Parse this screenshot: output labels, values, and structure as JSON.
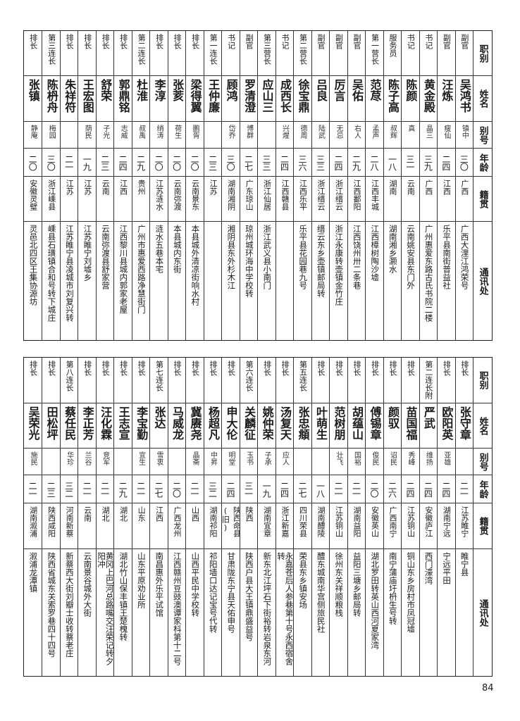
{
  "headers": [
    "职别",
    "姓名",
    "别号",
    "年龄",
    "籍贯",
    "通讯处"
  ],
  "sections": [
    {
      "rows": [
        {
          "rank": "副官",
          "name": "吴鸿书",
          "alias": "镇中",
          "age": "三〇",
          "native": "广西",
          "address": "广西大浬江鸿荣号"
        },
        {
          "rank": "副官",
          "name": "汪炼",
          "alias": "瘦仙",
          "age": "二四",
          "native": "江西",
          "address": "乐平县南街普益社"
        },
        {
          "rank": "书记",
          "name": "黄金殿",
          "alias": "晶三",
          "age": "三九",
          "native": "广西",
          "address": "广州惠爱东路古氏书院二楼"
        },
        {
          "rank": "书记",
          "name": "陈颜",
          "alias": "真",
          "age": "三一",
          "native": "云南",
          "address": "云南姚安县东门外"
        },
        {
          "rank": "服务员",
          "name": "陈子高",
          "alias": "叔辉",
          "age": "一八",
          "native": "湖南",
          "address": "湖南湘乡灏水"
        },
        {
          "rank": "第一营长",
          "name": "范荩",
          "alias": "孟声",
          "age": "二八",
          "native": "江西丰城",
          "address": "江西樟树陶沙墟"
        },
        {
          "rank": "副官",
          "name": "吴佑",
          "alias": "右人",
          "age": "二九",
          "native": "江西鄱阳",
          "address": "江西饶州卅二条巷"
        },
        {
          "rank": "副官",
          "name": "厉言",
          "alias": "无忌",
          "age": "二四",
          "native": "浙江缙云",
          "address": "浙江永康转壶镇金竹庄"
        },
        {
          "rank": "副官",
          "name": "吕良",
          "alias": "陆武",
          "age": "三三",
          "native": "浙江缙云",
          "address": "缙云东乡壶镇邮局转"
        },
        {
          "rank": "第二营长",
          "name": "徐宝鼎",
          "alias": "德周",
          "age": "三六",
          "native": "江西乐平",
          "address": "乐平县花园巷九号"
        },
        {
          "rank": "书记",
          "name": "成西长",
          "alias": "兴煋",
          "age": "二四",
          "native": "江西赣县",
          "address": ""
        },
        {
          "rank": "第三营长",
          "name": "应山三",
          "alias": "",
          "age": "三三",
          "native": "浙江仙居",
          "address": "浙江武义县小南门"
        },
        {
          "rank": "副官",
          "name": "罗清澄",
          "alias": "博群",
          "age": "二七",
          "native": "广东琼山",
          "address": "琼州城环海中学校转"
        },
        {
          "rank": "书记",
          "name": "顾鸿",
          "alias": "岱乔",
          "age": "三〇",
          "native": "湖南湘阴",
          "address": "湘阴县东外杉木江"
        },
        {
          "rank": "第一连长",
          "name": "王仲廉",
          "alias": "",
          "age": "二三",
          "native": "江苏",
          "address": ""
        },
        {
          "rank": "排长",
          "name": "梁得翼",
          "alias": "鹏胥",
          "age": "二〇",
          "native": "云南景东",
          "address": "本县城外清凉街响水村"
        },
        {
          "rank": "排长",
          "name": "张荄",
          "alias": "荷生",
          "age": "二〇",
          "native": "云南弥渡",
          "address": "本县城内东街"
        },
        {
          "rank": "排长",
          "name": "李淳",
          "alias": "绡涛",
          "age": "二〇",
          "native": "江苏涟水",
          "address": "涟水五巷本宅"
        },
        {
          "rank": "第二连长",
          "name": "杜淮",
          "alias": "叔禹",
          "age": "二九",
          "native": "贵州",
          "address": "广州市惠爱西路净慧街门"
        },
        {
          "rank": "排长",
          "name": "郭鼎铭",
          "alias": "志威",
          "age": "二四",
          "native": "江西",
          "address": "江西黎川县城内郭家老屋"
        },
        {
          "rank": "排长",
          "name": "舒荣",
          "alias": "子光",
          "age": "二三",
          "native": "云南",
          "address": "云南弥渡县舒家营"
        },
        {
          "rank": "排长",
          "name": "王宏图",
          "alias": "荫民",
          "age": "一九",
          "native": "江苏",
          "address": "江苏睢宁刘墟乡"
        },
        {
          "rank": "排长",
          "name": "朱祥符",
          "alias": "",
          "age": "二一",
          "native": "江苏",
          "address": "江苏睢宁县凌城市刘复兴转"
        },
        {
          "rank": "第三连长",
          "name": "陈枬舟",
          "alias": "梅园",
          "age": "三〇",
          "native": "浙江嵊县",
          "address": "嵊县石璜镇合和号转下城庄"
        },
        {
          "rank": "排长",
          "name": "张镇",
          "alias": "静庵",
          "age": "二〇",
          "native": "安徽灵璧",
          "address": "灵邑北四区王集协源坊"
        }
      ]
    },
    {
      "rows": [
        {
          "rank": "排长",
          "name": "张守章",
          "alias": "",
          "age": "二一",
          "native": "江苏睢宁",
          "address": "睢宁县"
        },
        {
          "rank": "排长",
          "name": "欧阳英",
          "alias": "亚雄",
          "age": "二四",
          "native": "湖南宁远",
          "address": "宁远平田"
        },
        {
          "rank": "第二连长附",
          "name": "严武",
          "alias": "维扬",
          "age": "二四",
          "native": "安徽庐江",
          "address": "西门濠湾"
        },
        {
          "rank": "排长",
          "name": "苗国福",
          "alias": "秀峰",
          "age": "二四",
          "native": "江苏铜山",
          "address": "铜山东乡房村市凤冠墟"
        },
        {
          "rank": "排长",
          "name": "颜驭",
          "alias": "诏民",
          "age": "二六",
          "native": "广西南宁",
          "address": "南宁蒲庙圩枬生号转"
        },
        {
          "rank": "排长",
          "name": "傅锡章",
          "alias": "俊民",
          "age": "二〇",
          "native": "安徽英山",
          "address": "湖北罗田转英山西河夏家湾"
        },
        {
          "rank": "排长",
          "name": "胡蕴山",
          "alias": "国裕",
          "age": "二一",
          "native": "湖南益阳",
          "address": "益阳三塘乡邮局转"
        },
        {
          "rank": "排长",
          "name": "范树朋",
          "alias": "壮飞",
          "age": "二一",
          "native": "江苏铜山",
          "address": "徐州东关祥顺粮栈"
        },
        {
          "rank": "排长",
          "name": "叶萌生",
          "alias": "",
          "age": "一八",
          "native": "湖南醴陵",
          "address": "醴东城南华宫侧旅民社"
        },
        {
          "rank": "第五连长",
          "name": "张忠頫",
          "alias": "",
          "age": "二七",
          "native": "四川荣县",
          "address": "荣县东乡镇安场"
        },
        {
          "rank": "排长",
          "name": "汤复天",
          "alias": "应人",
          "age": "二四",
          "native": "浙江新嘉",
          "address": "永嘉苍后人参巷第十号永西宿舍转"
        },
        {
          "rank": "排长",
          "name": "姚仲荣",
          "alias": "子承",
          "age": "一九",
          "native": "湖南宜章",
          "address": "新东北江坪石下街裕转岩泉东河"
        },
        {
          "rank": "第六连长",
          "name": "关麟征",
          "alias": "玉书",
          "age": "三一",
          "native": "陕西",
          "address": "陕西户县大王镇鼎盛益号"
        },
        {
          "rank": "排长",
          "name": "申大伦",
          "alias": "明堂",
          "age": "二四",
          "native": "陕西命县(旧)",
          "address": "甘肃陇东宁县天佑申号"
        },
        {
          "rank": "排长",
          "name": "杨超凡",
          "alias": "中昇",
          "age": "三二",
          "native": "湖南祁阳",
          "address": "祁阳墙口达记宝号代转"
        },
        {
          "rank": "排长",
          "name": "冀赓尧",
          "alias": "晶斋",
          "age": "二一",
          "native": "山西",
          "address": "山西平民中学校转"
        },
        {
          "rank": "排长",
          "name": "马威龙",
          "alias": "",
          "age": "二〇",
          "native": "广西龙州",
          "address": "江西赣州豆豉澳谭家枓第十二号"
        },
        {
          "rank": "第七连长",
          "name": "张达",
          "alias": "雪衷",
          "age": "二七",
          "native": "江西",
          "address": "南昌惠外乐平试馆"
        },
        {
          "rank": "排长",
          "name": "李宝勤",
          "alias": "宜生",
          "age": "二一",
          "native": "山东",
          "address": "山东平原劝业所"
        },
        {
          "rank": "排长",
          "name": "王志宣",
          "alias": "",
          "age": "二九",
          "native": "湖北",
          "address": "湖北竹山保丰镇王楚槐转"
        },
        {
          "rank": "排长",
          "name": "汪化霖",
          "alias": "竞军",
          "age": "二一",
          "native": "湖北",
          "address": "黄冈上巴河总路嘴交汪荣记转夕阳冲"
        },
        {
          "rank": "排长",
          "name": "李正芳",
          "alias": "兰谷",
          "age": "二一",
          "native": "云南",
          "address": "云南景谷城外大街"
        },
        {
          "rank": "第八连长",
          "name": "蔡任民",
          "alias": "华珍",
          "age": "三二",
          "native": "河南新蔡",
          "address": "新蔡西大街刘瓣士收转蔡老庄"
        },
        {
          "rank": "排长",
          "name": "田松坪",
          "alias": "",
          "age": "二三",
          "native": "陕西咸阳",
          "address": "陕西省城东关索罗巷四十四号"
        },
        {
          "rank": "排长",
          "name": "吴荣光",
          "alias": "施民",
          "age": "二一",
          "native": "湖南溆浦",
          "address": "溆浦龙潭镇"
        }
      ]
    }
  ],
  "page_number": "84"
}
